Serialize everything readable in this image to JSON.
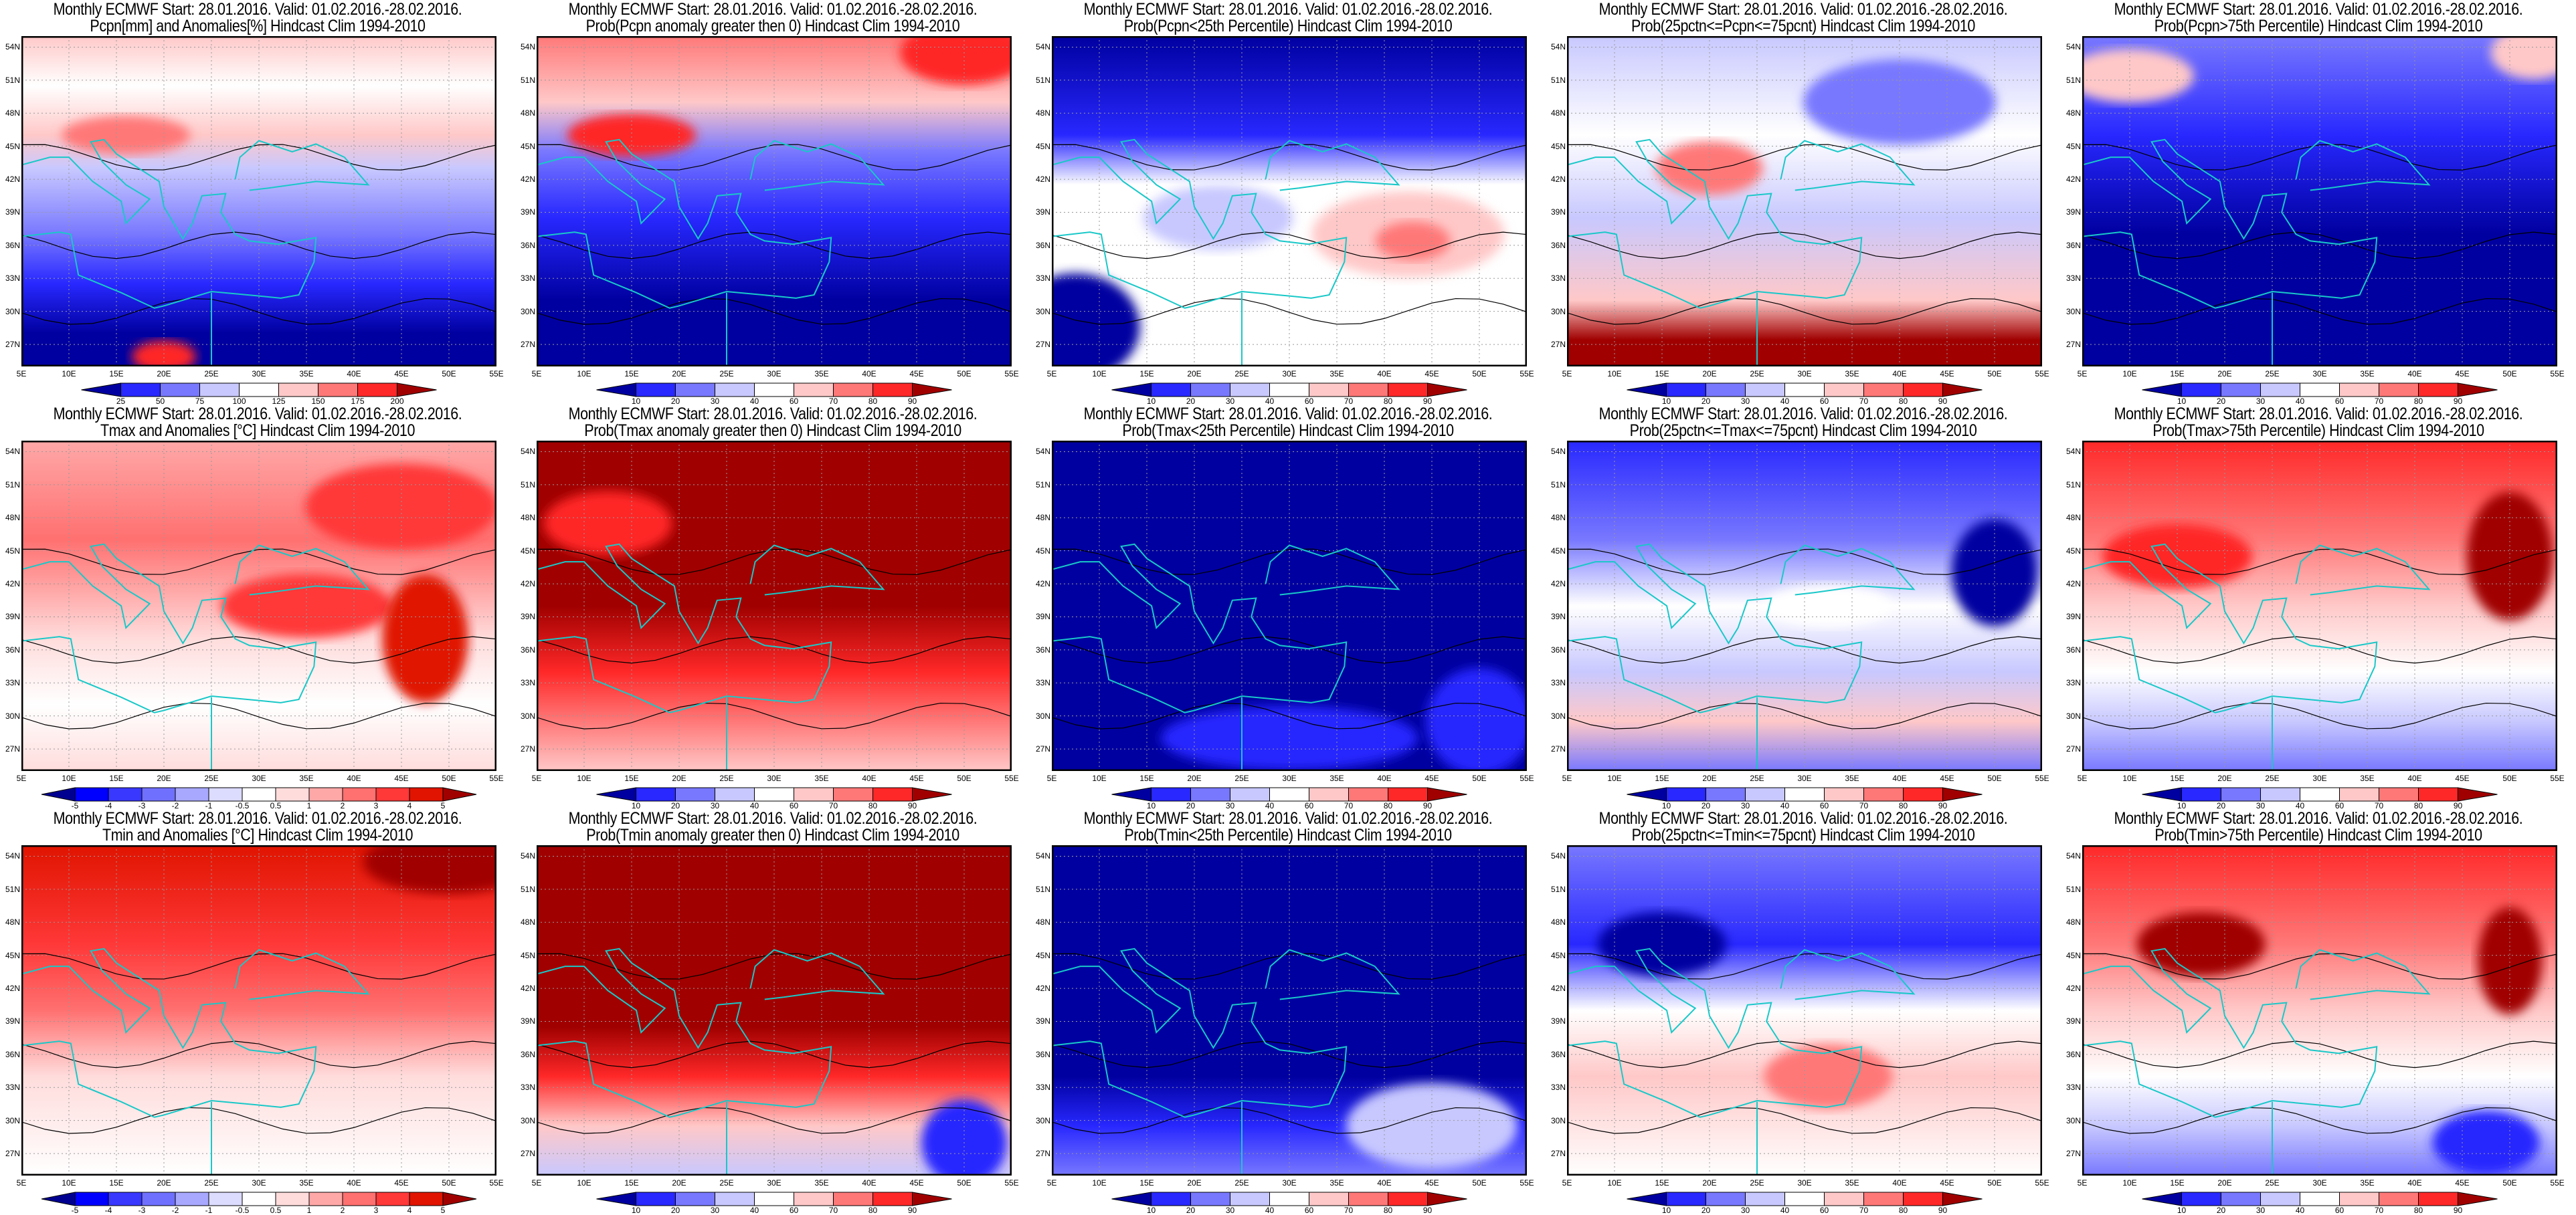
{
  "figure_header": "Monthly ECMWF Start: 28.01.2016. Valid: 01.02.2016.-28.02.2016.",
  "axes": {
    "lat_ticks": [
      "54N",
      "51N",
      "48N",
      "45N",
      "42N",
      "39N",
      "36N",
      "33N",
      "30N",
      "27N"
    ],
    "lon_ticks": [
      "5E",
      "10E",
      "15E",
      "20E",
      "25E",
      "30E",
      "35E",
      "40E",
      "45E",
      "50E",
      "55E"
    ]
  },
  "colorbars": {
    "pcpn": {
      "labels": [
        "25",
        "50",
        "75",
        "100",
        "125",
        "150",
        "175",
        "200"
      ],
      "colors": [
        "#0000a0",
        "#2828ff",
        "#7878ff",
        "#c8c8ff",
        "#ffffff",
        "#ffc8c8",
        "#ff7878",
        "#ff2828",
        "#a00000"
      ]
    },
    "prob": {
      "labels": [
        "10",
        "20",
        "30",
        "40",
        "60",
        "70",
        "80",
        "90"
      ],
      "colors": [
        "#0000a0",
        "#2828ff",
        "#7878ff",
        "#c8c8ff",
        "#ffffff",
        "#ffc8c8",
        "#ff7878",
        "#ff2828",
        "#a00000"
      ]
    },
    "temp": {
      "labels": [
        "-5",
        "-4",
        "-3",
        "-2",
        "-1",
        "-0.5",
        "0.5",
        "1",
        "2",
        "3",
        "4",
        "5"
      ],
      "colors": [
        "#000090",
        "#0000ff",
        "#3838ff",
        "#7070ff",
        "#a8a8ff",
        "#dcdcff",
        "#ffffff",
        "#ffdcdc",
        "#ffa8a8",
        "#ff7070",
        "#ff3838",
        "#e01400",
        "#a00000"
      ]
    }
  },
  "chart_data": [
    {
      "type": "heatmap",
      "title_line1": "Monthly ECMWF Start: 28.01.2016. Valid: 01.02.2016.-28.02.2016.",
      "title_line2": "Pcpn[mm] and Anomalies[%] Hindcast Clim 1994-2010",
      "colorbar": "pcpn",
      "xlim": [
        5,
        55
      ],
      "ylim": [
        25,
        55
      ]
    },
    {
      "type": "heatmap",
      "title_line1": "Monthly ECMWF Start: 28.01.2016. Valid: 01.02.2016.-28.02.2016.",
      "title_line2": "Prob(Pcpn anomaly greater then 0) Hindcast Clim 1994-2010",
      "colorbar": "prob",
      "xlim": [
        5,
        55
      ],
      "ylim": [
        25,
        55
      ]
    },
    {
      "type": "heatmap",
      "title_line1": "Monthly ECMWF Start: 28.01.2016. Valid: 01.02.2016.-28.02.2016.",
      "title_line2": "Prob(Pcpn<25th Percentile) Hindcast Clim 1994-2010",
      "colorbar": "prob",
      "xlim": [
        5,
        55
      ],
      "ylim": [
        25,
        55
      ]
    },
    {
      "type": "heatmap",
      "title_line1": "Monthly ECMWF Start: 28.01.2016. Valid: 01.02.2016.-28.02.2016.",
      "title_line2": "Prob(25pctn<=Pcpn<=75pcnt) Hindcast Clim 1994-2010",
      "colorbar": "prob",
      "xlim": [
        5,
        55
      ],
      "ylim": [
        25,
        55
      ]
    },
    {
      "type": "heatmap",
      "title_line1": "Monthly ECMWF Start: 28.01.2016. Valid: 01.02.2016.-28.02.2016.",
      "title_line2": "Prob(Pcpn>75th Percentile) Hindcast Clim 1994-2010",
      "colorbar": "prob",
      "xlim": [
        5,
        55
      ],
      "ylim": [
        25,
        55
      ]
    },
    {
      "type": "heatmap",
      "title_line1": "Monthly ECMWF Start: 28.01.2016. Valid: 01.02.2016.-28.02.2016.",
      "title_line2": "Tmax and Anomalies [°C] Hindcast Clim 1994-2010",
      "colorbar": "temp",
      "xlim": [
        5,
        55
      ],
      "ylim": [
        25,
        55
      ]
    },
    {
      "type": "heatmap",
      "title_line1": "Monthly ECMWF Start: 28.01.2016. Valid: 01.02.2016.-28.02.2016.",
      "title_line2": "Prob(Tmax anomaly greater then 0) Hindcast Clim 1994-2010",
      "colorbar": "prob",
      "xlim": [
        5,
        55
      ],
      "ylim": [
        25,
        55
      ]
    },
    {
      "type": "heatmap",
      "title_line1": "Monthly ECMWF Start: 28.01.2016. Valid: 01.02.2016.-28.02.2016.",
      "title_line2": "Prob(Tmax<25th Percentile) Hindcast Clim 1994-2010",
      "colorbar": "prob",
      "xlim": [
        5,
        55
      ],
      "ylim": [
        25,
        55
      ]
    },
    {
      "type": "heatmap",
      "title_line1": "Monthly ECMWF Start: 28.01.2016. Valid: 01.02.2016.-28.02.2016.",
      "title_line2": "Prob(25pctn<=Tmax<=75pcnt) Hindcast Clim 1994-2010",
      "colorbar": "prob",
      "xlim": [
        5,
        55
      ],
      "ylim": [
        25,
        55
      ]
    },
    {
      "type": "heatmap",
      "title_line1": "Monthly ECMWF Start: 28.01.2016. Valid: 01.02.2016.-28.02.2016.",
      "title_line2": "Prob(Tmax>75th Percentile) Hindcast Clim 1994-2010",
      "colorbar": "prob",
      "xlim": [
        5,
        55
      ],
      "ylim": [
        25,
        55
      ]
    },
    {
      "type": "heatmap",
      "title_line1": "Monthly ECMWF Start: 28.01.2016. Valid: 01.02.2016.-28.02.2016.",
      "title_line2": "Tmin and Anomalies [°C] Hindcast Clim 1994-2010",
      "colorbar": "temp",
      "xlim": [
        5,
        55
      ],
      "ylim": [
        25,
        55
      ]
    },
    {
      "type": "heatmap",
      "title_line1": "Monthly ECMWF Start: 28.01.2016. Valid: 01.02.2016.-28.02.2016.",
      "title_line2": "Prob(Tmin anomaly greater then 0) Hindcast Clim 1994-2010",
      "colorbar": "prob",
      "xlim": [
        5,
        55
      ],
      "ylim": [
        25,
        55
      ]
    },
    {
      "type": "heatmap",
      "title_line1": "Monthly ECMWF Start: 28.01.2016. Valid: 01.02.2016.-28.02.2016.",
      "title_line2": "Prob(Tmin<25th Percentile) Hindcast Clim 1994-2010",
      "colorbar": "prob",
      "xlim": [
        5,
        55
      ],
      "ylim": [
        25,
        55
      ]
    },
    {
      "type": "heatmap",
      "title_line1": "Monthly ECMWF Start: 28.01.2016. Valid: 01.02.2016.-28.02.2016.",
      "title_line2": "Prob(25pctn<=Tmin<=75pcnt) Hindcast Clim 1994-2010",
      "colorbar": "prob",
      "xlim": [
        5,
        55
      ],
      "ylim": [
        25,
        55
      ]
    },
    {
      "type": "heatmap",
      "title_line1": "Monthly ECMWF Start: 28.01.2016. Valid: 01.02.2016.-28.02.2016.",
      "title_line2": "Prob(Tmin>75th Percentile) Hindcast Clim 1994-2010",
      "colorbar": "prob",
      "xlim": [
        5,
        55
      ],
      "ylim": [
        25,
        55
      ]
    }
  ]
}
